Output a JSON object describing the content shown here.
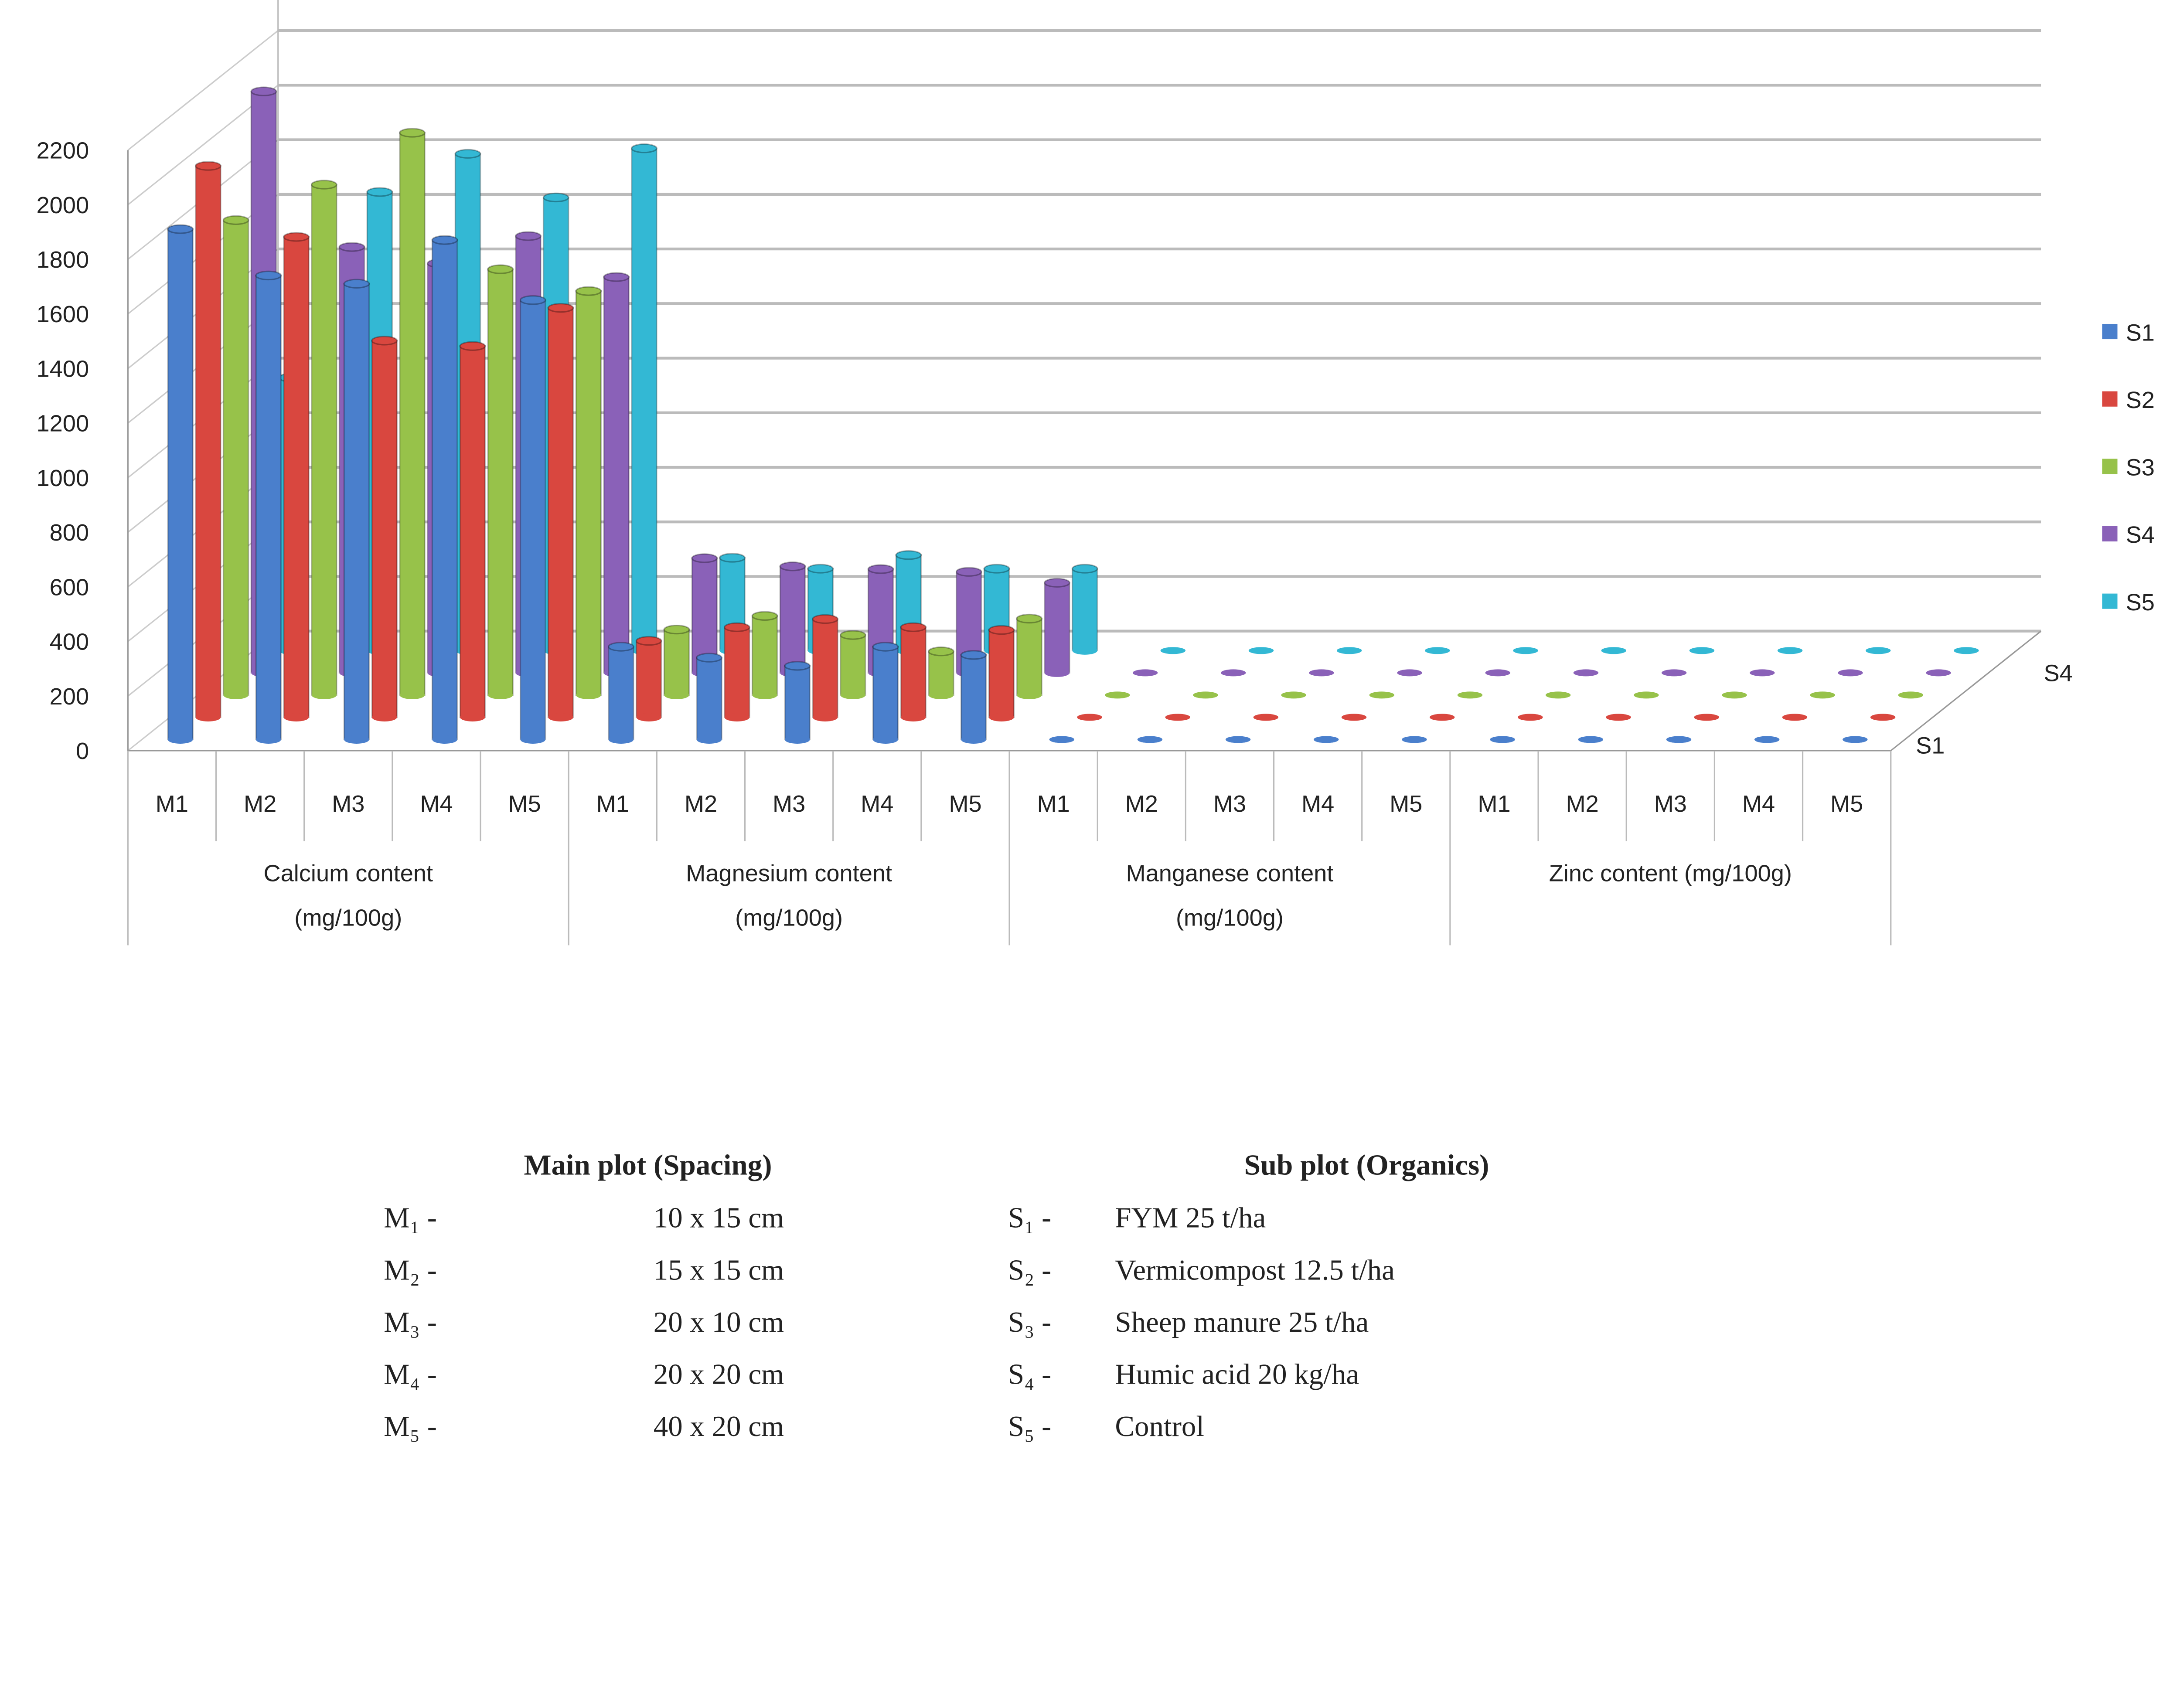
{
  "chart_data": {
    "type": "bar",
    "subtype": "3d-cylinder-clustered",
    "title": "",
    "ylabel": "",
    "xlabel": "",
    "ylim": [
      0,
      2200
    ],
    "yticks": [
      0,
      200,
      400,
      600,
      800,
      1000,
      1200,
      1400,
      1600,
      1800,
      2000,
      2200
    ],
    "grid": true,
    "legend_position": "right",
    "depth_axis_labels": [
      "S1",
      "S4"
    ],
    "groups": [
      {
        "label": "Calcium content (mg/100g)",
        "line1": "Calcium content",
        "line2": "(mg/100g)"
      },
      {
        "label": "Magnesium content (mg/100g)",
        "line1": "Magnesium content",
        "line2": "(mg/100g)"
      },
      {
        "label": "Manganese content (mg/100g)",
        "line1": "Manganese content",
        "line2": "(mg/100g)"
      },
      {
        "label": "Zinc content (mg/100g)",
        "line1": "Zinc content (mg/100g)",
        "line2": ""
      }
    ],
    "categories": [
      "M1",
      "M2",
      "M3",
      "M4",
      "M5"
    ],
    "series": [
      {
        "name": "S1",
        "color": "#4a7fcc",
        "values": [
          [
            1870,
            1700,
            1670,
            1830,
            1610
          ],
          [
            340,
            300,
            270,
            340,
            310
          ],
          [
            3,
            3,
            3,
            3,
            3
          ],
          [
            2,
            2,
            2,
            2,
            2
          ]
        ]
      },
      {
        "name": "S2",
        "color": "#d9473f",
        "values": [
          [
            2020,
            1760,
            1380,
            1360,
            1500
          ],
          [
            280,
            330,
            360,
            330,
            320
          ],
          [
            3,
            3,
            3,
            3,
            3
          ],
          [
            2,
            2,
            2,
            2,
            2
          ]
        ]
      },
      {
        "name": "S3",
        "color": "#97c24a",
        "values": [
          [
            1740,
            1870,
            2060,
            1560,
            1480
          ],
          [
            240,
            290,
            220,
            160,
            280
          ],
          [
            3,
            3,
            3,
            3,
            3
          ],
          [
            2,
            2,
            2,
            2,
            2
          ]
        ]
      },
      {
        "name": "S4",
        "color": "#8a61b8",
        "values": [
          [
            2130,
            1560,
            1500,
            1600,
            1450
          ],
          [
            420,
            390,
            380,
            370,
            330
          ],
          [
            3,
            3,
            3,
            3,
            3
          ],
          [
            2,
            2,
            2,
            2,
            2
          ]
        ]
      },
      {
        "name": "S5",
        "color": "#33b8d4",
        "values": [
          [
            1000,
            1680,
            1820,
            1660,
            1840
          ],
          [
            340,
            300,
            350,
            300,
            300
          ],
          [
            3,
            3,
            3,
            3,
            3
          ],
          [
            2,
            2,
            2,
            2,
            2
          ]
        ]
      }
    ]
  },
  "notes": {
    "main_heading": "Main plot (Spacing)",
    "sub_heading": "Sub plot (Organics)",
    "main": [
      {
        "code": "M₁ -",
        "value": "10 x 15 cm"
      },
      {
        "code": "M₂ -",
        "value": "15 x 15 cm"
      },
      {
        "code": "M₃ -",
        "value": "20 x 10 cm"
      },
      {
        "code": "M₄ -",
        "value": "20 x 20 cm"
      },
      {
        "code": "M₅ -",
        "value": "40 x 20 cm"
      }
    ],
    "sub": [
      {
        "code": "S₁ -",
        "value": "FYM 25 t/ha"
      },
      {
        "code": "S₂ -",
        "value": "Vermicompost 12.5 t/ha"
      },
      {
        "code": "S₃ -",
        "value": "Sheep manure 25 t/ha"
      },
      {
        "code": "S₄ -",
        "value": "Humic acid 20 kg/ha"
      },
      {
        "code": "S₅ -",
        "value": "Control"
      }
    ]
  }
}
